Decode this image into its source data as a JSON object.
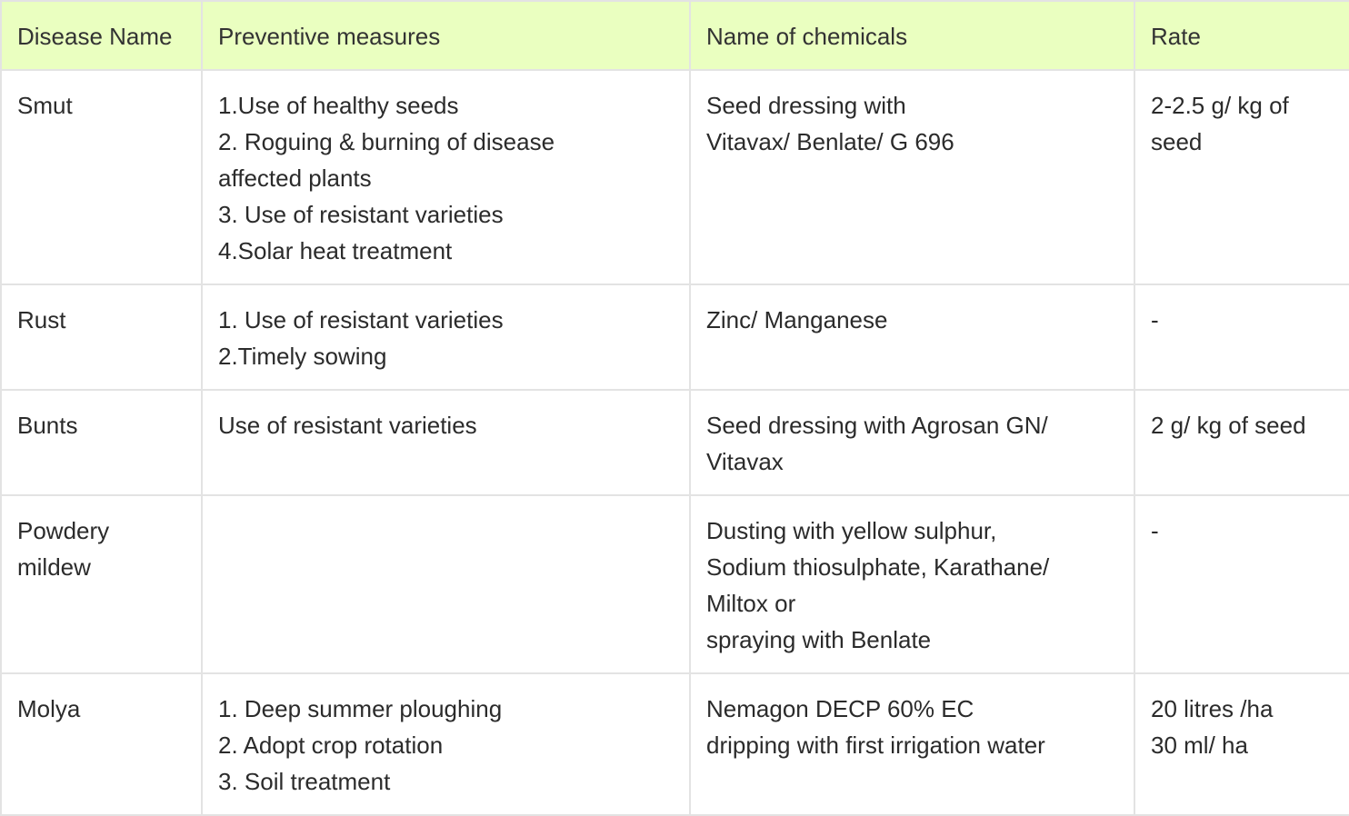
{
  "table": {
    "headers": [
      "Disease Name",
      "Preventive measures",
      "Name of chemicals",
      "Rate"
    ],
    "rows": [
      {
        "disease": "Smut",
        "measures": [
          "1.Use of healthy seeds",
          "2. Roguing & burning of disease",
          "affected plants",
          "3. Use of resistant varieties",
          "4.Solar heat treatment"
        ],
        "chemicals": [
          "Seed dressing with",
          "Vitavax/ Benlate/ G 696"
        ],
        "rate": [
          "2-2.5 g/ kg of",
          "seed"
        ]
      },
      {
        "disease": "Rust",
        "measures": [
          "1. Use of resistant varieties",
          "2.Timely sowing"
        ],
        "chemicals": [
          "Zinc/ Manganese"
        ],
        "rate": [
          "-"
        ]
      },
      {
        "disease": "Bunts",
        "measures": [
          "Use of resistant varieties"
        ],
        "chemicals": [
          "Seed dressing with Agrosan GN/",
          "Vitavax"
        ],
        "rate": [
          "2 g/ kg of seed"
        ]
      },
      {
        "disease": [
          "Powdery",
          "mildew"
        ],
        "measures": [],
        "chemicals": [
          "Dusting with yellow sulphur,",
          "Sodium thiosulphate, Karathane/",
          "Miltox or",
          "spraying with Benlate"
        ],
        "rate": [
          "-"
        ]
      },
      {
        "disease": "Molya",
        "measures": [
          "1. Deep summer ploughing",
          "2. Adopt crop rotation",
          "3. Soil treatment"
        ],
        "chemicals": [
          "Nemagon DECP 60% EC",
          "dripping with first irrigation water"
        ],
        "rate": [
          "20 litres /ha",
          "30 ml/ ha"
        ]
      }
    ]
  }
}
